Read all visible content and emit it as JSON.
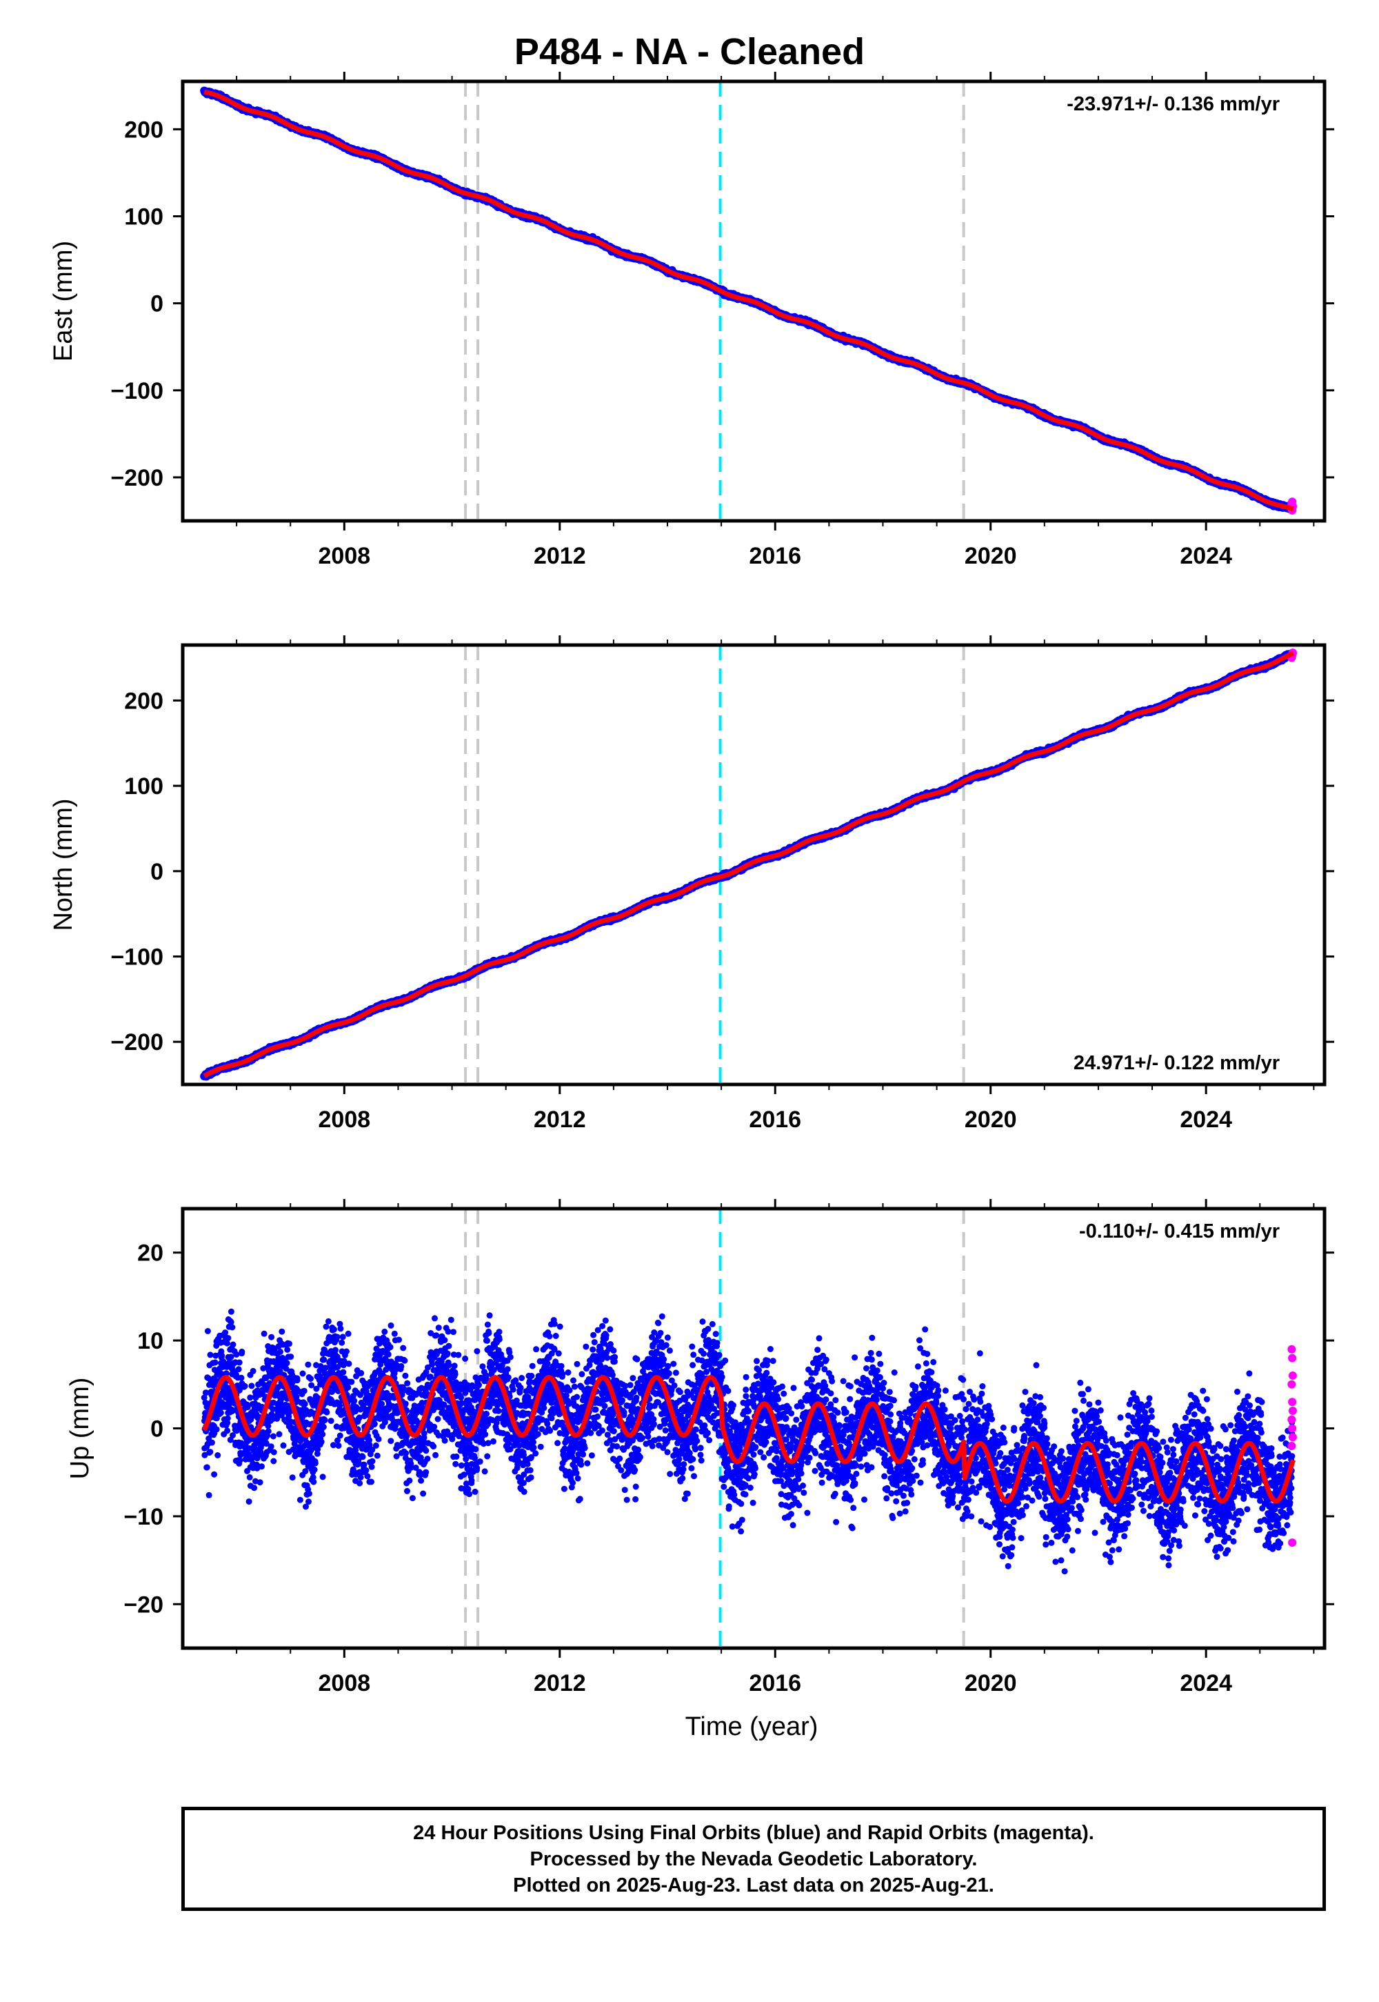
{
  "title": "P484  - NA - Cleaned",
  "colors": {
    "final_orbits": "#0000ff",
    "rapid_orbits": "#ff00ff",
    "model_fit": "#ff0000",
    "event_gray": "#c8c8c8",
    "event_cyan": "#00e5ff"
  },
  "chart_data": [
    {
      "type": "scatter",
      "ylabel": "East (mm)",
      "rate_text": "-23.971+/- 0.136 mm/yr",
      "xlim": [
        2005,
        2026.2
      ],
      "ylim": [
        -250,
        255
      ],
      "xticks": [
        2008,
        2012,
        2016,
        2020,
        2024
      ],
      "yticks": [
        -200,
        -100,
        0,
        100,
        200
      ],
      "ytick_labels": [
        "−200",
        "−100",
        "0",
        "100",
        "200"
      ],
      "xtick_labels": [
        "2008",
        "2012",
        "2016",
        "2020",
        "2024"
      ],
      "data_start": 2005.4,
      "data_end": 2025.62,
      "start_value": 243,
      "end_value": -238,
      "seasonal_amplitude": 1.5,
      "scatter_std": 1.5,
      "rapid_values": [
        -231,
        -228,
        -234,
        -236,
        -238,
        -233,
        -230
      ]
    },
    {
      "type": "scatter",
      "ylabel": "North (mm)",
      "rate_text": "24.971+/- 0.122 mm/yr",
      "xlim": [
        2005,
        2026.2
      ],
      "ylim": [
        -250,
        265
      ],
      "xticks": [
        2008,
        2012,
        2016,
        2020,
        2024
      ],
      "yticks": [
        -200,
        -100,
        0,
        100,
        200
      ],
      "ytick_labels": [
        "−200",
        "−100",
        "0",
        "100",
        "200"
      ],
      "xtick_labels": [
        "2008",
        "2012",
        "2016",
        "2020",
        "2024"
      ],
      "data_start": 2005.4,
      "data_end": 2025.62,
      "start_value": -240,
      "end_value": 254,
      "seasonal_amplitude": 1.5,
      "scatter_std": 1.5,
      "rapid_values": [
        252,
        253,
        255,
        251,
        254,
        256,
        250
      ]
    },
    {
      "type": "scatter",
      "ylabel": "Up (mm)",
      "xlabel": "Time (year)",
      "rate_text": "-0.110+/- 0.415 mm/yr",
      "xlim": [
        2005,
        2026.2
      ],
      "ylim": [
        -25,
        25
      ],
      "xticks": [
        2008,
        2012,
        2016,
        2020,
        2024
      ],
      "yticks": [
        -20,
        -10,
        0,
        10,
        20
      ],
      "ytick_labels": [
        "−20",
        "−10",
        "0",
        "10",
        "20"
      ],
      "xtick_labels": [
        "2008",
        "2012",
        "2016",
        "2020",
        "2024"
      ],
      "data_start": 2005.4,
      "data_end": 2025.62,
      "fit_segments": [
        {
          "from": 2005.4,
          "to": 2015.0,
          "offset": 2.5,
          "amplitude": 3.3
        },
        {
          "from": 2015.0,
          "to": 2019.5,
          "offset": -0.5,
          "amplitude": 3.3
        },
        {
          "from": 2019.5,
          "to": 2025.62,
          "offset": -5.0,
          "amplitude": 3.3
        }
      ],
      "scatter_std": 4.5,
      "rapid_values": [
        9,
        8,
        6,
        5,
        3,
        2,
        1,
        0,
        -1,
        -2,
        -13
      ]
    }
  ],
  "events": {
    "gray_years": [
      2010.25,
      2010.48,
      2019.5
    ],
    "cyan_years": [
      2014.98
    ]
  },
  "caption": {
    "line1": "24 Hour Positions Using Final Orbits (blue) and Rapid Orbits (magenta).",
    "line2": "Processed by the Nevada Geodetic Laboratory.",
    "line3": "Plotted on 2025-Aug-23. Last data on 2025-Aug-21."
  }
}
